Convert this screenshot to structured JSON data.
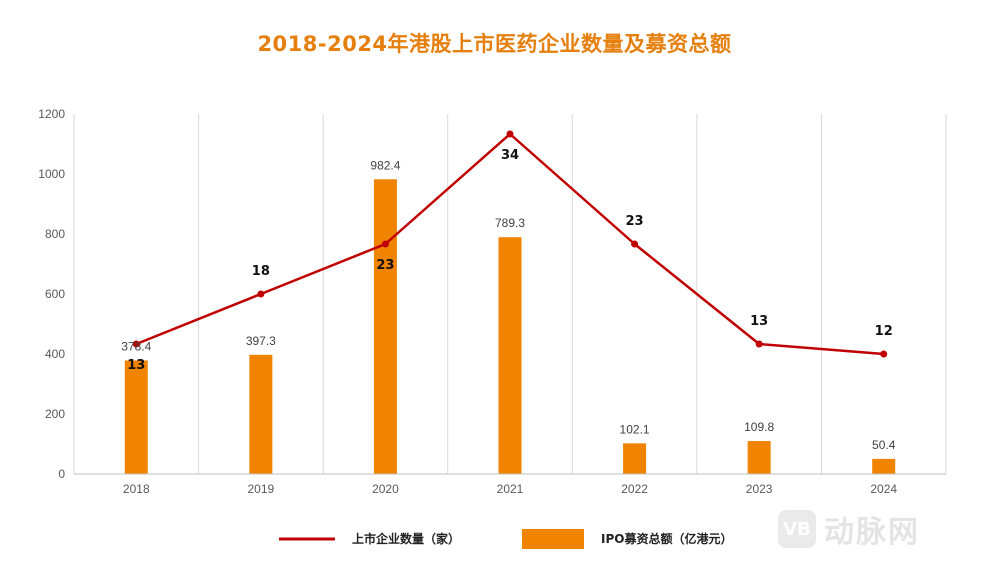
{
  "chart_data": {
    "type": "bar",
    "title": "2018-2024年港股上市医药企业数量及募资总额",
    "categories": [
      "2018",
      "2019",
      "2020",
      "2021",
      "2022",
      "2023",
      "2024"
    ],
    "y_ticks": [
      "0",
      "200",
      "400",
      "600",
      "800",
      "1000",
      "1200"
    ],
    "ylim": [
      0,
      1200
    ],
    "series": [
      {
        "name": "IPO募资总额（亿港元）",
        "type": "bar",
        "color": "#f08300",
        "values": [
          378.4,
          397.3,
          982.4,
          789.3,
          102.1,
          109.8,
          50.4
        ],
        "labels": [
          "378.4",
          "397.3",
          "982.4",
          "789.3",
          "102.1",
          "109.8",
          "50.4"
        ]
      },
      {
        "name": "上市企业数量（家）",
        "type": "line",
        "color": "#c00000",
        "values": [
          13,
          18,
          23,
          34,
          23,
          13,
          12
        ],
        "labels": [
          "13",
          "18",
          "23",
          "34",
          "23",
          "13",
          "12"
        ],
        "secondary_axis_max": 36
      }
    ],
    "grid": {
      "vertical": true
    },
    "legend": "bottom"
  },
  "watermark": {
    "mark": "VB",
    "text": "动脉网"
  }
}
